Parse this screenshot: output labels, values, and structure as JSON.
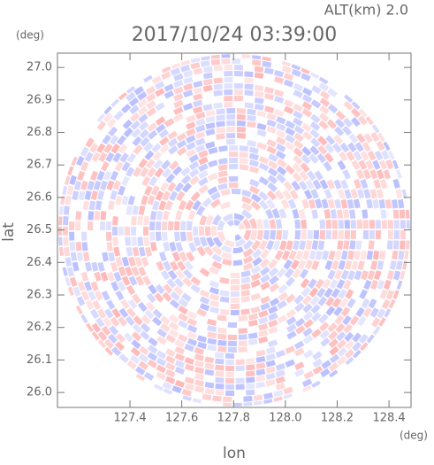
{
  "chart_data": {
    "type": "radar-ppi",
    "title": "2017/10/24 03:39:00",
    "subtitle": "ALT(km) 2.0",
    "y_unit": "(deg)",
    "x_unit": "(deg)",
    "x_label": "lon",
    "y_label": "lat",
    "xlim": [
      127.12,
      128.485
    ],
    "ylim": [
      25.954,
      27.044
    ],
    "xticks": [
      127.4,
      127.6,
      127.8,
      {
        "value": 128.0,
        "label": "128.0"
      },
      128.2,
      128.4
    ],
    "yticks": [
      {
        "value": 26.0,
        "label": "26.0"
      },
      26.1,
      26.2,
      26.3,
      26.4,
      26.5,
      26.6,
      26.7,
      26.8,
      26.9,
      {
        "value": 27.0,
        "label": "27.0"
      }
    ]
  }
}
